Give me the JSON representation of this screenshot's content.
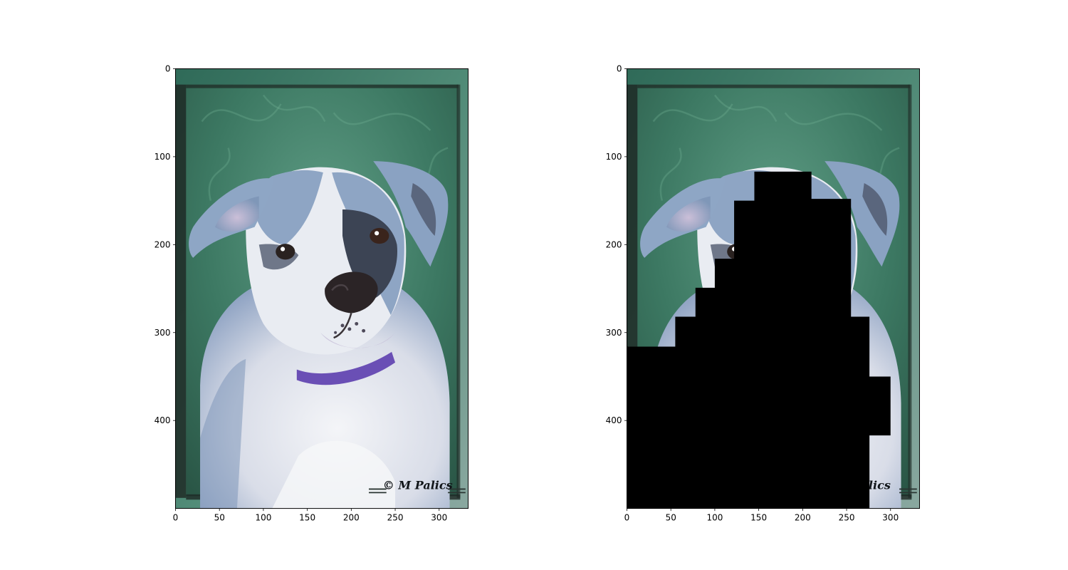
{
  "chart_data": [
    {
      "type": "image",
      "panel": "original",
      "image_description": "photograph of a white and blue-grey bulldog puppy with a purple collar, in a green frame",
      "watermark_text": "© M Palics",
      "xlim": [
        0,
        333
      ],
      "ylim": [
        500,
        0
      ],
      "x_ticks": [
        0,
        50,
        100,
        150,
        200,
        250,
        300
      ],
      "y_ticks": [
        0,
        100,
        200,
        300,
        400
      ],
      "grid": false
    },
    {
      "type": "image",
      "panel": "masked",
      "image_description": "same photograph with a stepped black occlusion mask covering the dog's face and body",
      "watermark_text": "lics",
      "xlim": [
        0,
        333
      ],
      "ylim": [
        500,
        0
      ],
      "x_ticks": [
        0,
        50,
        100,
        150,
        200,
        250,
        300
      ],
      "y_ticks": [
        0,
        100,
        200,
        300,
        400
      ],
      "grid": false,
      "mask_polygon": [
        [
          145,
          117
        ],
        [
          210,
          117
        ],
        [
          210,
          148
        ],
        [
          255,
          148
        ],
        [
          255,
          282
        ],
        [
          276,
          282
        ],
        [
          276,
          350
        ],
        [
          300,
          350
        ],
        [
          300,
          417
        ],
        [
          276,
          417
        ],
        [
          276,
          500
        ],
        [
          0,
          500
        ],
        [
          0,
          316
        ],
        [
          55,
          316
        ],
        [
          55,
          282
        ],
        [
          78,
          282
        ],
        [
          78,
          249
        ],
        [
          100,
          249
        ],
        [
          100,
          216
        ],
        [
          122,
          216
        ],
        [
          122,
          150
        ],
        [
          145,
          150
        ]
      ]
    }
  ],
  "colors": {
    "frame_green": "#3f7a66",
    "grass_dark": "#2c5a47",
    "grass_mid": "#3e7a63",
    "grass_light": "#5e9a82",
    "dog_white": "#eef0f4",
    "dog_grey": "#7e98b8",
    "dog_dark": "#3a4252",
    "collar": "#6a4fb5",
    "mask": "#000000"
  }
}
